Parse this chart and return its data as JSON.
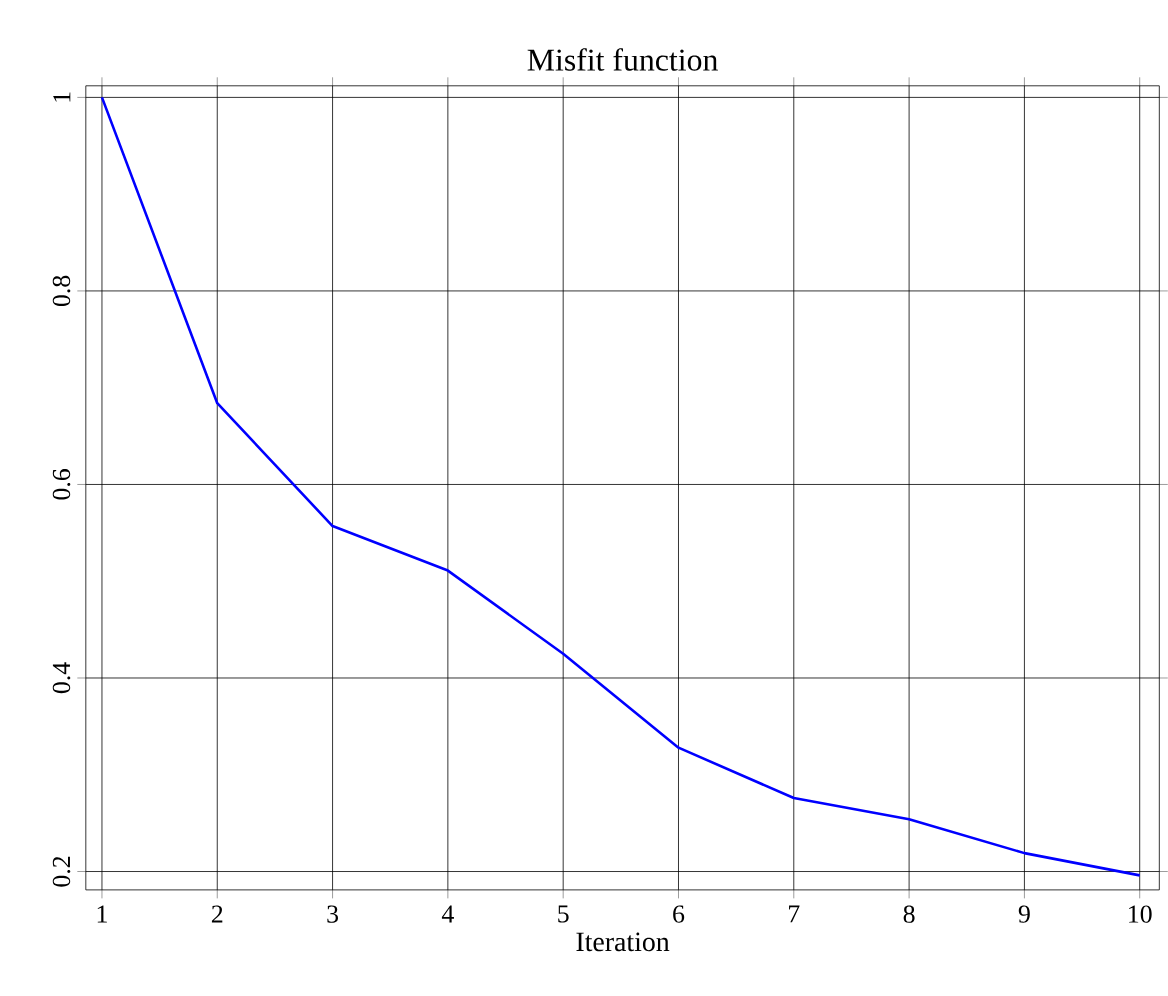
{
  "chart_data": {
    "type": "line",
    "title": "Misfit function",
    "xlabel": "Iteration",
    "x": [
      1,
      2,
      3,
      4,
      5,
      6,
      7,
      8,
      9,
      10
    ],
    "series": [
      {
        "color": "#0000ff",
        "values": [
          1.0,
          0.684,
          0.557,
          0.511,
          0.425,
          0.328,
          0.276,
          0.254,
          0.219,
          0.196
        ]
      }
    ],
    "xlim": [
      0.86,
      10.17
    ],
    "ylim": [
      0.181,
      1.012
    ],
    "xticks": [
      1,
      2,
      3,
      4,
      5,
      6,
      7,
      8,
      9,
      10
    ],
    "yticks": [
      0.2,
      0.4,
      0.6,
      0.8,
      1
    ],
    "grid": true,
    "marker": "none",
    "line_style": "solid"
  }
}
